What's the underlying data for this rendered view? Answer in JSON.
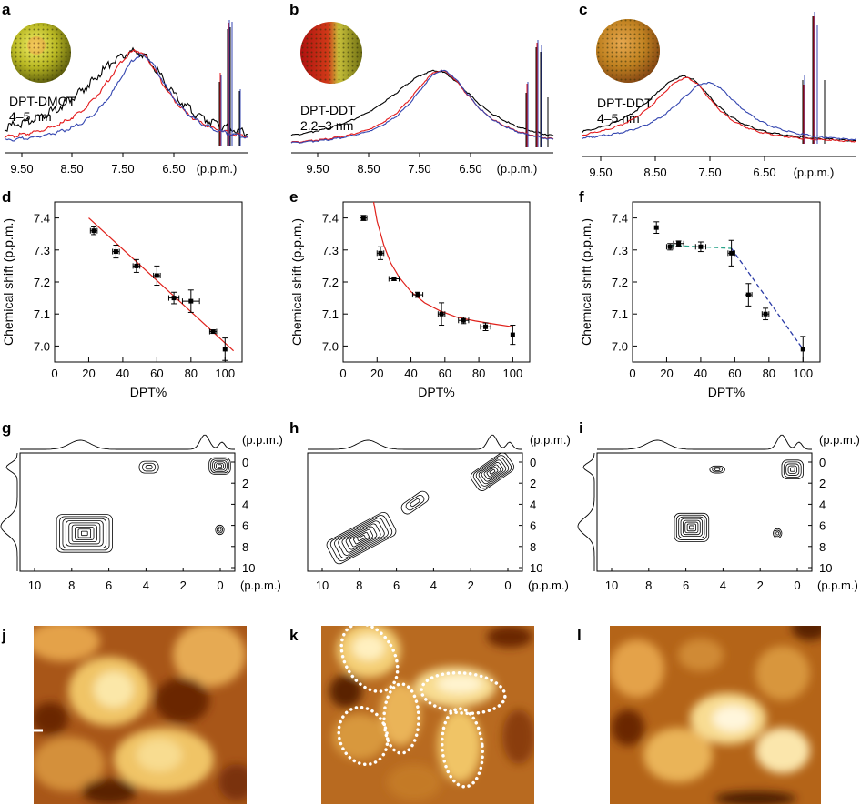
{
  "panels": {
    "a": {
      "letter": "a",
      "label_line1": "DPT-DMOT",
      "label_line2": "4–5 nm",
      "ticks": [
        "9.50",
        "8.50",
        "7.50",
        "6.50"
      ],
      "unit": "(p.p.m.)"
    },
    "b": {
      "letter": "b",
      "label_line1": "DPT-DDT",
      "label_line2": "2.2–3 nm",
      "ticks": [
        "9.50",
        "8.50",
        "7.50",
        "6.50"
      ],
      "unit": "(p.p.m.)"
    },
    "c": {
      "letter": "c",
      "label_line1": "DPT-DDT",
      "label_line2": "4–5 nm",
      "ticks": [
        "9.50",
        "8.50",
        "7.50",
        "6.50"
      ],
      "unit": "(p.p.m.)"
    },
    "d": {
      "letter": "d"
    },
    "e": {
      "letter": "e"
    },
    "f": {
      "letter": "f"
    },
    "g": {
      "letter": "g"
    },
    "h": {
      "letter": "h"
    },
    "i": {
      "letter": "i"
    },
    "j": {
      "letter": "j"
    },
    "k": {
      "letter": "k"
    },
    "l": {
      "letter": "l"
    }
  },
  "colors": {
    "black": "#000000",
    "red": "#e41a1c",
    "blue": "#3446b0",
    "fit_red": "#e0201a",
    "fit_green": "#2aa58a",
    "fit_blue": "#2a3aa6",
    "afm_dark": "#3a1500",
    "afm_mid": "#b8661a",
    "afm_light": "#fff4d0"
  },
  "chart_data": [
    {
      "panel": "d",
      "type": "scatter",
      "xlabel": "DPT%",
      "ylabel": "Chemical shift (p.p.m.)",
      "xlim": [
        0,
        110
      ],
      "ylim": [
        6.95,
        7.45
      ],
      "xticks": [
        0,
        20,
        40,
        60,
        80,
        100
      ],
      "yticks": [
        7.0,
        7.1,
        7.2,
        7.3,
        7.4
      ],
      "xtick_labels": [
        "0",
        "20",
        "40",
        "60",
        "80",
        "100"
      ],
      "ytick_labels": [
        "7.0",
        "7.1",
        "7.2",
        "7.3",
        "7.4"
      ],
      "points": [
        {
          "x": 23,
          "y": 7.36,
          "xerr": 2,
          "yerr": 0.012
        },
        {
          "x": 36,
          "y": 7.295,
          "xerr": 2,
          "yerr": 0.02
        },
        {
          "x": 48,
          "y": 7.25,
          "xerr": 2,
          "yerr": 0.02
        },
        {
          "x": 60,
          "y": 7.22,
          "xerr": 2,
          "yerr": 0.03
        },
        {
          "x": 70,
          "y": 7.15,
          "xerr": 3,
          "yerr": 0.018
        },
        {
          "x": 80,
          "y": 7.14,
          "xerr": 5,
          "yerr": 0.035
        },
        {
          "x": 93,
          "y": 7.045,
          "xerr": 2,
          "yerr": 0.005
        },
        {
          "x": 100,
          "y": 6.99,
          "xerr": 0,
          "yerr": 0.035
        }
      ],
      "fit": {
        "kind": "linear",
        "color": "#e0201a",
        "x": [
          20,
          105
        ],
        "y": [
          7.4,
          6.985
        ]
      }
    },
    {
      "panel": "e",
      "type": "scatter",
      "xlabel": "DPT%",
      "ylabel": "Chemical shift (p.p.m.)",
      "xlim": [
        0,
        110
      ],
      "ylim": [
        6.95,
        7.45
      ],
      "xticks": [
        0,
        20,
        40,
        60,
        80,
        100
      ],
      "yticks": [
        7.0,
        7.1,
        7.2,
        7.3,
        7.4
      ],
      "xtick_labels": [
        "0",
        "20",
        "40",
        "60",
        "80",
        "100"
      ],
      "ytick_labels": [
        "7.0",
        "7.1",
        "7.2",
        "7.3",
        "7.4"
      ],
      "points": [
        {
          "x": 12,
          "y": 7.4,
          "xerr": 2,
          "yerr": 0.008
        },
        {
          "x": 22,
          "y": 7.29,
          "xerr": 2,
          "yerr": 0.02
        },
        {
          "x": 30,
          "y": 7.21,
          "xerr": 3,
          "yerr": 0.005
        },
        {
          "x": 44,
          "y": 7.16,
          "xerr": 3,
          "yerr": 0.008
        },
        {
          "x": 58,
          "y": 7.1,
          "xerr": 2,
          "yerr": 0.035
        },
        {
          "x": 71,
          "y": 7.08,
          "xerr": 3,
          "yerr": 0.01
        },
        {
          "x": 84,
          "y": 7.06,
          "xerr": 3,
          "yerr": 0.012
        },
        {
          "x": 100,
          "y": 7.035,
          "xerr": 0,
          "yerr": 0.03
        }
      ],
      "fit": {
        "kind": "curve",
        "color": "#e0201a",
        "x": [
          18,
          20,
          24,
          28,
          33,
          40,
          48,
          57,
          67,
          78,
          90,
          100
        ],
        "y": [
          7.45,
          7.39,
          7.315,
          7.26,
          7.215,
          7.17,
          7.135,
          7.11,
          7.09,
          7.078,
          7.068,
          7.06
        ]
      }
    },
    {
      "panel": "f",
      "type": "scatter",
      "xlabel": "DPT%",
      "ylabel": "Chemical shift (p.p.m.)",
      "xlim": [
        0,
        110
      ],
      "ylim": [
        6.95,
        7.45
      ],
      "xticks": [
        0,
        20,
        40,
        60,
        80,
        100
      ],
      "yticks": [
        7.0,
        7.1,
        7.2,
        7.3,
        7.4
      ],
      "xtick_labels": [
        "0",
        "20",
        "40",
        "60",
        "80",
        "100"
      ],
      "ytick_labels": [
        "7.0",
        "7.1",
        "7.2",
        "7.3",
        "7.4"
      ],
      "points": [
        {
          "x": 14,
          "y": 7.37,
          "xerr": 0,
          "yerr": 0.018
        },
        {
          "x": 22,
          "y": 7.31,
          "xerr": 2,
          "yerr": 0.01
        },
        {
          "x": 27,
          "y": 7.32,
          "xerr": 3,
          "yerr": 0.008
        },
        {
          "x": 40,
          "y": 7.31,
          "xerr": 3,
          "yerr": 0.015
        },
        {
          "x": 58,
          "y": 7.29,
          "xerr": 2,
          "yerr": 0.04
        },
        {
          "x": 68,
          "y": 7.16,
          "xerr": 2,
          "yerr": 0.035
        },
        {
          "x": 78,
          "y": 7.1,
          "xerr": 2,
          "yerr": 0.018
        },
        {
          "x": 100,
          "y": 6.99,
          "xerr": 0,
          "yerr": 0.04
        }
      ],
      "fit_segments": [
        {
          "color": "#2aa58a",
          "x": [
            22,
            58
          ],
          "y": [
            7.315,
            7.305
          ]
        },
        {
          "color": "#2a3aa6",
          "x": [
            58,
            100
          ],
          "y": [
            7.305,
            6.99
          ]
        }
      ]
    }
  ],
  "nmr2d": {
    "ticks_x": [
      "10",
      "8",
      "6",
      "4",
      "2",
      "0"
    ],
    "ticks_y": [
      "0",
      "2",
      "4",
      "6",
      "8",
      "10"
    ],
    "unit": "(p.p.m.)"
  }
}
